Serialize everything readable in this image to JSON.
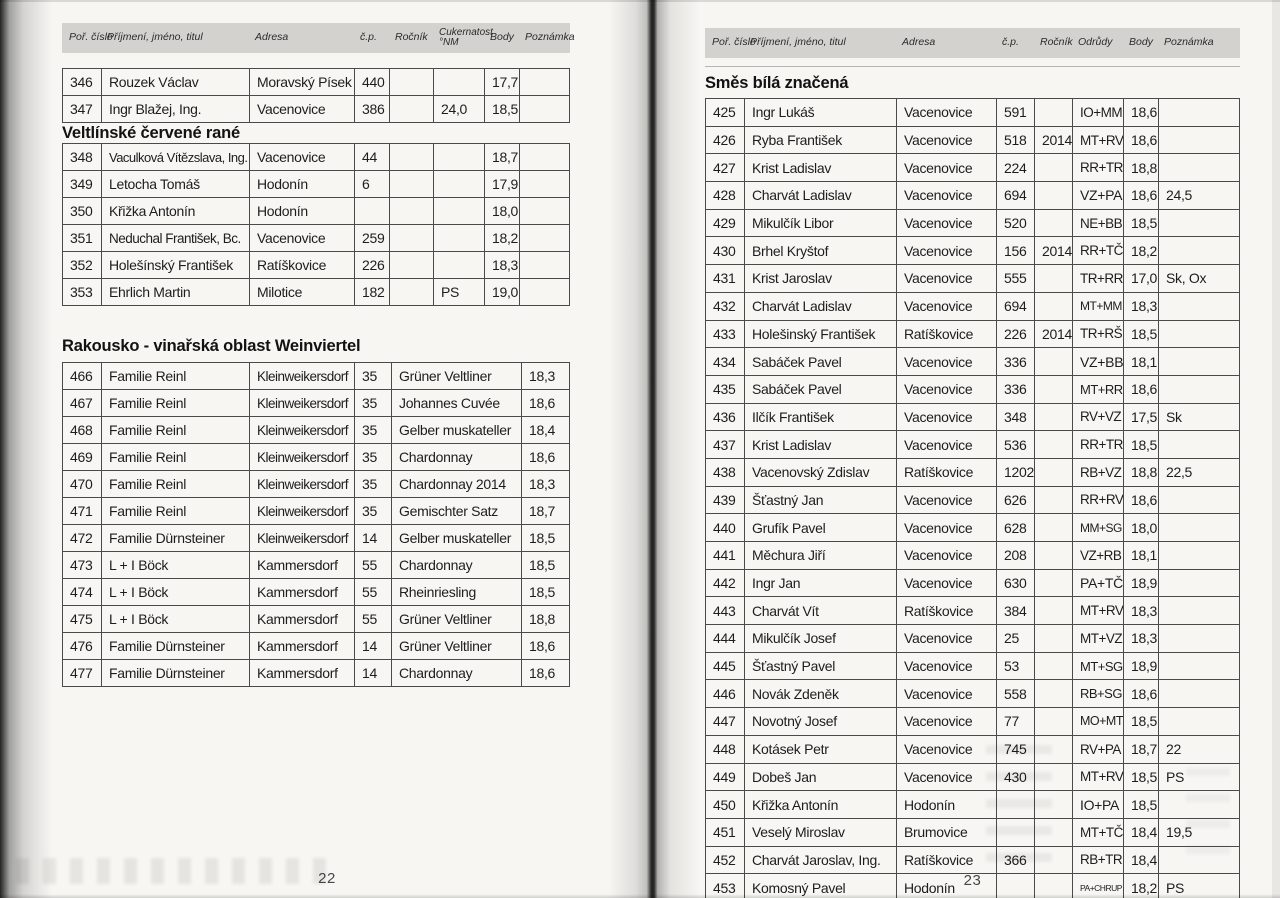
{
  "colors": {
    "paper": "#f7f6f3",
    "header_band": "#d3d2cf",
    "ink": "#1d1d1d",
    "table_line": "#4a4a4a"
  },
  "left_page": {
    "page_number": "22",
    "header_cols": [
      "Poř. číslo",
      "Příjmení, jméno, titul",
      "Adresa",
      "č.p.",
      "Ročník",
      "Cukernatost °NM",
      "Body",
      "Poznámka"
    ],
    "top_rows": [
      [
        "346",
        "Rouzek Václav",
        "Moravský Písek",
        "440",
        "",
        "",
        "17,7",
        ""
      ],
      [
        "347",
        "Ingr Blažej, Ing.",
        "Vacenovice",
        "386",
        "",
        "24,0",
        "18,5",
        ""
      ]
    ],
    "section1": {
      "title": "Veltlínské červené rané",
      "rows": [
        [
          "348",
          "Vaculková Vítězslava, Ing.",
          "Vacenovice",
          "44",
          "",
          "",
          "18,7",
          ""
        ],
        [
          "349",
          "Letocha Tomáš",
          "Hodonín",
          "6",
          "",
          "",
          "17,9",
          ""
        ],
        [
          "350",
          "Křižka Antonín",
          "Hodonín",
          "",
          "",
          "",
          "18,0",
          ""
        ],
        [
          "351",
          "Neduchal František, Bc.",
          "Vacenovice",
          "259",
          "",
          "",
          "18,2",
          ""
        ],
        [
          "352",
          "Holešínský František",
          "Ratíškovice",
          "226",
          "",
          "",
          "18,3",
          ""
        ],
        [
          "353",
          "Ehrlich Martin",
          "Milotice",
          "182",
          "",
          "PS",
          "19,0",
          ""
        ]
      ]
    },
    "section2": {
      "title": "Rakousko - vinařská oblast Weinviertel",
      "rows": [
        [
          "466",
          "Familie Reinl",
          "Kleinweikersdorf",
          "35",
          "Grüner Veltliner",
          "18,3"
        ],
        [
          "467",
          "Familie Reinl",
          "Kleinweikersdorf",
          "35",
          "Johannes Cuvée",
          "18,6"
        ],
        [
          "468",
          "Familie Reinl",
          "Kleinweikersdorf",
          "35",
          "Gelber muskateller",
          "18,4"
        ],
        [
          "469",
          "Familie Reinl",
          "Kleinweikersdorf",
          "35",
          "Chardonnay",
          "18,6"
        ],
        [
          "470",
          "Familie Reinl",
          "Kleinweikersdorf",
          "35",
          "Chardonnay 2014",
          "18,3"
        ],
        [
          "471",
          "Familie Reinl",
          "Kleinweikersdorf",
          "35",
          "Gemischter Satz",
          "18,7"
        ],
        [
          "472",
          "Familie Dürnsteiner",
          "Kleinweikersdorf",
          "14",
          "Gelber muskateller",
          "18,5"
        ],
        [
          "473",
          "L + I Böck",
          "Kammersdorf",
          "55",
          "Chardonnay",
          "18,5"
        ],
        [
          "474",
          "L + I Böck",
          "Kammersdorf",
          "55",
          "Rheinriesling",
          "18,5"
        ],
        [
          "475",
          "L + I Böck",
          "Kammersdorf",
          "55",
          "Grüner Veltliner",
          "18,8"
        ],
        [
          "476",
          "Familie Dürnsteiner",
          "Kammersdorf",
          "14",
          "Grüner Veltliner",
          "18,6"
        ],
        [
          "477",
          "Familie Dürnsteiner",
          "Kammersdorf",
          "14",
          "Chardonnay",
          "18,6"
        ]
      ]
    }
  },
  "right_page": {
    "page_number": "23",
    "header_cols": [
      "Poř. číslo",
      "Příjmení, jméno, titul",
      "Adresa",
      "č.p.",
      "Ročník",
      "Odrůdy",
      "Body",
      "Poznámka"
    ],
    "section": {
      "title": "Směs bílá značená",
      "rows": [
        [
          "425",
          "Ingr Lukáš",
          "Vacenovice",
          "591",
          "",
          "IO+MM",
          "18,6",
          ""
        ],
        [
          "426",
          "Ryba František",
          "Vacenovice",
          "518",
          "2014",
          "MT+RV",
          "18,6",
          ""
        ],
        [
          "427",
          "Krist Ladislav",
          "Vacenovice",
          "224",
          "",
          "RR+TR",
          "18,8",
          ""
        ],
        [
          "428",
          "Charvát Ladislav",
          "Vacenovice",
          "694",
          "",
          "VZ+PA",
          "18,6",
          "24,5"
        ],
        [
          "429",
          "Mikulčík Libor",
          "Vacenovice",
          "520",
          "",
          "NE+BB",
          "18,5",
          ""
        ],
        [
          "430",
          "Brhel Kryštof",
          "Vacenovice",
          "156",
          "2014",
          "RR+TČ",
          "18,2",
          ""
        ],
        [
          "431",
          "Krist Jaroslav",
          "Vacenovice",
          "555",
          "",
          "TR+RR",
          "17,0",
          "Sk, Ox"
        ],
        [
          "432",
          "Charvát Ladislav",
          "Vacenovice",
          "694",
          "",
          "MT+MM",
          "18,3",
          ""
        ],
        [
          "433",
          "Holešinský František",
          "Ratíškovice",
          "226",
          "2014",
          "TR+RŠ",
          "18,5",
          ""
        ],
        [
          "434",
          "Sabáček Pavel",
          "Vacenovice",
          "336",
          "",
          "VZ+BB",
          "18,1",
          ""
        ],
        [
          "435",
          "Sabáček Pavel",
          "Vacenovice",
          "336",
          "",
          "MT+RR",
          "18,6",
          ""
        ],
        [
          "436",
          "Ilčík František",
          "Vacenovice",
          "348",
          "",
          "RV+VZ",
          "17,5",
          "Sk"
        ],
        [
          "437",
          "Krist Ladislav",
          "Vacenovice",
          "536",
          "",
          "RR+TR",
          "18,5",
          ""
        ],
        [
          "438",
          "Vacenovský Zdislav",
          "Ratíškovice",
          "1202",
          "",
          "RB+VZ",
          "18,8",
          "22,5"
        ],
        [
          "439",
          "Šťastný Jan",
          "Vacenovice",
          "626",
          "",
          "RR+RV",
          "18,6",
          ""
        ],
        [
          "440",
          "Grufík Pavel",
          "Vacenovice",
          "628",
          "",
          "MM+SG",
          "18,0",
          ""
        ],
        [
          "441",
          "Měchura Jiří",
          "Vacenovice",
          "208",
          "",
          "VZ+RB",
          "18,1",
          ""
        ],
        [
          "442",
          "Ingr Jan",
          "Vacenovice",
          "630",
          "",
          "PA+TČ",
          "18,9",
          ""
        ],
        [
          "443",
          "Charvát Vít",
          "Ratíškovice",
          "384",
          "",
          "MT+RV",
          "18,3",
          ""
        ],
        [
          "444",
          "Mikulčík Josef",
          "Vacenovice",
          "25",
          "",
          "MT+VZ",
          "18,3",
          ""
        ],
        [
          "445",
          "Šťastný Pavel",
          "Vacenovice",
          "53",
          "",
          "MT+SG",
          "18,9",
          ""
        ],
        [
          "446",
          "Novák Zdeněk",
          "Vacenovice",
          "558",
          "",
          "RB+SG",
          "18,6",
          ""
        ],
        [
          "447",
          "Novotný Josef",
          "Vacenovice",
          "77",
          "",
          "MO+MT",
          "18,5",
          ""
        ],
        [
          "448",
          "Kotásek Petr",
          "Vacenovice",
          "745",
          "",
          "RV+PA",
          "18,7",
          "22"
        ],
        [
          "449",
          "Dobeš Jan",
          "Vacenovice",
          "430",
          "",
          "MT+RV",
          "18,5",
          "PS"
        ],
        [
          "450",
          "Křižka Antonín",
          "Hodonín",
          "",
          "",
          "IO+PA",
          "18,5",
          ""
        ],
        [
          "451",
          "Veselý Miroslav",
          "Brumovice",
          "",
          "",
          "MT+TČ",
          "18,4",
          "19,5"
        ],
        [
          "452",
          "Charvát Jaroslav, Ing.",
          "Ratíškovice",
          "366",
          "",
          "RB+TR",
          "18,4",
          ""
        ],
        [
          "453",
          "Komosný Pavel",
          "Hodonín",
          "",
          "",
          "PA+CHRUP",
          "18,2",
          "PS"
        ]
      ]
    }
  }
}
